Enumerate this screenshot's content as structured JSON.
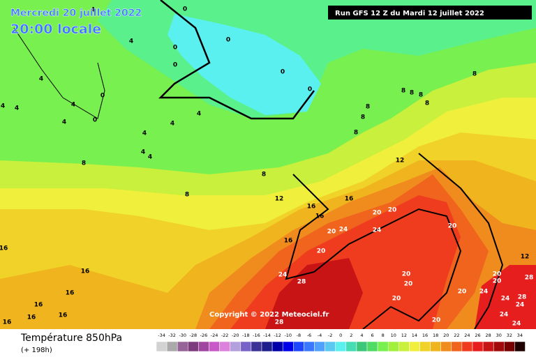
{
  "header": {
    "date": "Mercredi 20 juillet 2022",
    "time": "20:00 locale",
    "run": "Run GFS 12 Z du Mardi 12 juillet 2022",
    "copyright": "Copyright © 2022 Meteociel.fr"
  },
  "footer": {
    "title": "Température 850hPa",
    "lead": "(+ 198h)"
  },
  "scale": {
    "values": [
      -34,
      -32,
      -30,
      -28,
      -26,
      -24,
      -22,
      -20,
      -18,
      -16,
      -14,
      -12,
      -10,
      -8,
      -6,
      -4,
      -2,
      0,
      2,
      4,
      6,
      8,
      10,
      12,
      14,
      16,
      18,
      20,
      22,
      24,
      26,
      28,
      30,
      32,
      34
    ],
    "colors": [
      "#d2d2d2",
      "#aaaaaa",
      "#966496",
      "#7d3c7d",
      "#a046a0",
      "#c85ac8",
      "#dc82dc",
      "#b4a0dc",
      "#7864c8",
      "#3c3296",
      "#1e1e8c",
      "#0000aa",
      "#0000e6",
      "#1e46ff",
      "#3c78ff",
      "#50a0ff",
      "#5ac8f0",
      "#5af0f0",
      "#46dcb4",
      "#3cc878",
      "#50dc64",
      "#78f050",
      "#a0f03c",
      "#c8f03c",
      "#f0f03c",
      "#f0d228",
      "#f0b41e",
      "#f08c1e",
      "#f0641e",
      "#f03c1e",
      "#e61e1e",
      "#c81414",
      "#a00a0a",
      "#780000",
      "#1e0000"
    ]
  },
  "contour_labels": [
    0,
    0,
    0,
    0,
    0,
    0,
    0,
    0,
    4,
    4,
    4,
    4,
    4,
    4,
    4,
    4,
    4,
    4,
    4,
    4,
    8,
    8,
    8,
    8,
    8,
    8,
    8,
    8,
    8,
    8,
    8,
    12,
    12,
    12,
    16,
    16,
    16,
    16,
    16,
    16,
    16,
    16,
    16,
    16,
    16,
    20,
    20,
    20,
    20,
    20,
    20,
    20,
    20,
    20,
    20,
    20,
    20,
    24,
    24,
    24,
    24,
    24,
    24,
    24,
    24,
    28,
    28,
    28,
    28
  ]
}
